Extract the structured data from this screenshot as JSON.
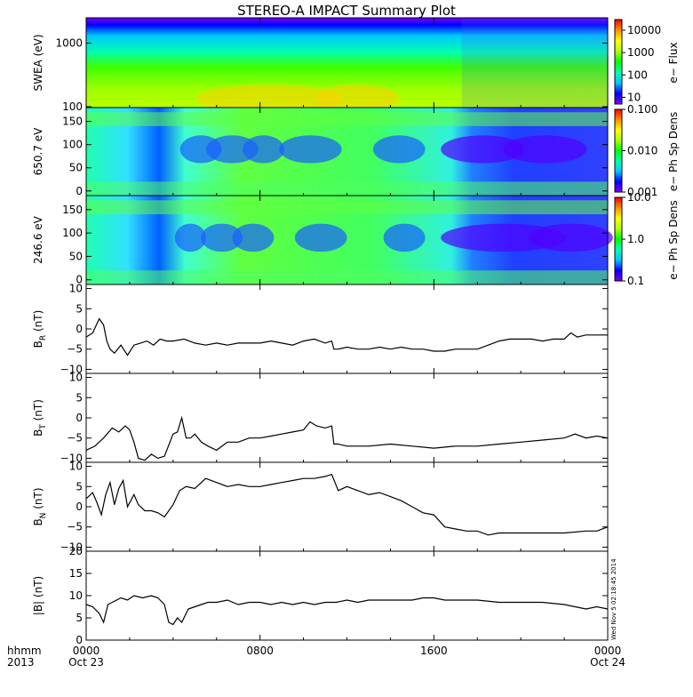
{
  "title": "STEREO-A IMPACT Summary Plot",
  "stamp": "Wed Nov  5 02:18:45 2014",
  "time_axis": {
    "corner_top": "hhmm",
    "corner_bottom": "2013",
    "range": [
      0,
      24
    ],
    "ticks": [
      {
        "t": 0,
        "top": "0000",
        "bottom": "Oct 23"
      },
      {
        "t": 8,
        "top": "0800",
        "bottom": ""
      },
      {
        "t": 16,
        "top": "1600",
        "bottom": ""
      },
      {
        "t": 24,
        "top": "0000",
        "bottom": "Oct 24"
      }
    ]
  },
  "colors": {
    "colorbar_stops": [
      "#7a00ff",
      "#0000ff",
      "#00c8ff",
      "#00ffb0",
      "#00ff00",
      "#b0ff00",
      "#ffff00",
      "#ff9000",
      "#ff0000"
    ],
    "line": "#000000"
  },
  "chart_data": [
    {
      "type": "heatmap",
      "ylabel": "SWEA (eV)",
      "scale": "log",
      "ylim": [
        100,
        2000
      ],
      "yticks": [
        {
          "v": 100,
          "label": "100"
        },
        {
          "v": 1000,
          "label": "1000"
        }
      ],
      "colorbar": {
        "title": "e− Flux",
        "scale": "log",
        "range": [
          5,
          30000
        ],
        "ticks": [
          {
            "v": 10,
            "label": "10"
          },
          {
            "v": 100,
            "label": "100"
          },
          {
            "v": 1000,
            "label": "1000"
          },
          {
            "v": 10000,
            "label": "10000"
          }
        ]
      }
    },
    {
      "type": "heatmap",
      "ylabel": "650.7 eV",
      "scale": "linear",
      "ylim": [
        -10,
        180
      ],
      "yticks": [
        {
          "v": 0,
          "label": "0"
        },
        {
          "v": 50,
          "label": "50"
        },
        {
          "v": 100,
          "label": "100"
        },
        {
          "v": 150,
          "label": "150"
        }
      ],
      "colorbar": {
        "title": "e− Ph Sp Dens",
        "scale": "log",
        "range": [
          0.001,
          0.1
        ],
        "ticks": [
          {
            "v": 0.001,
            "label": "0.001"
          },
          {
            "v": 0.01,
            "label": "0.010"
          },
          {
            "v": 0.1,
            "label": "0.100"
          }
        ]
      }
    },
    {
      "type": "heatmap",
      "ylabel": "246.6 eV",
      "scale": "linear",
      "ylim": [
        -10,
        180
      ],
      "yticks": [
        {
          "v": 0,
          "label": "0"
        },
        {
          "v": 50,
          "label": "50"
        },
        {
          "v": 100,
          "label": "100"
        },
        {
          "v": 150,
          "label": "150"
        }
      ],
      "colorbar": {
        "title": "e− Ph Sp Dens",
        "scale": "log",
        "range": [
          0.1,
          10
        ],
        "ticks": [
          {
            "v": 0.1,
            "label": "0.1"
          },
          {
            "v": 1,
            "label": "1.0"
          },
          {
            "v": 10,
            "label": "10.0"
          }
        ]
      }
    },
    {
      "type": "line",
      "ylabel": "B",
      "ylabel_sub": "R",
      "ylabel_unit": " (nT)",
      "ylim": [
        -11,
        11
      ],
      "yticks": [
        {
          "v": -10,
          "label": "−10"
        },
        {
          "v": -5,
          "label": "−5"
        },
        {
          "v": 0,
          "label": "0"
        },
        {
          "v": 5,
          "label": "5"
        },
        {
          "v": 10,
          "label": "10"
        }
      ],
      "x": [
        0,
        0.3,
        0.6,
        0.8,
        0.95,
        1.1,
        1.3,
        1.6,
        1.9,
        2.2,
        2.5,
        2.8,
        3.1,
        3.4,
        3.7,
        4,
        4.5,
        5,
        5.5,
        6,
        6.5,
        7,
        7.5,
        8,
        8.5,
        9,
        9.5,
        10,
        10.5,
        11,
        11.3,
        11.4,
        11.6,
        12,
        12.5,
        13,
        13.5,
        14,
        14.5,
        15,
        15.5,
        16,
        16.5,
        17,
        17.5,
        18,
        18.5,
        19,
        19.5,
        20,
        20.5,
        21,
        21.5,
        22,
        22.3,
        22.6,
        23,
        23.5,
        24
      ],
      "y": [
        -2,
        -1,
        2.5,
        1,
        -3,
        -5,
        -6,
        -4,
        -6.5,
        -4,
        -3.5,
        -3,
        -4,
        -2.5,
        -3,
        -3,
        -2.5,
        -3.5,
        -4,
        -3.5,
        -4,
        -3.5,
        -3.5,
        -3.5,
        -3,
        -3.5,
        -4,
        -3,
        -2.5,
        -3.5,
        -3,
        -5,
        -5,
        -4.5,
        -5,
        -5,
        -4.5,
        -5,
        -4.5,
        -5,
        -5,
        -5.5,
        -5.5,
        -5,
        -5,
        -5,
        -4,
        -3,
        -2.5,
        -2.5,
        -2.5,
        -3,
        -2.5,
        -2.5,
        -1,
        -2,
        -1.5,
        -1.5,
        -1.5
      ]
    },
    {
      "type": "line",
      "ylabel": "B",
      "ylabel_sub": "T",
      "ylabel_unit": " (nT)",
      "ylim": [
        -11,
        11
      ],
      "yticks": [
        {
          "v": -10,
          "label": "−10"
        },
        {
          "v": -5,
          "label": "−5"
        },
        {
          "v": 0,
          "label": "0"
        },
        {
          "v": 5,
          "label": "5"
        },
        {
          "v": 10,
          "label": "10"
        }
      ],
      "x": [
        0,
        0.4,
        0.8,
        1.2,
        1.5,
        1.8,
        2.0,
        2.2,
        2.4,
        2.7,
        3.0,
        3.3,
        3.6,
        4.0,
        4.2,
        4.4,
        4.6,
        4.8,
        5.0,
        5.3,
        5.6,
        6.0,
        6.5,
        7,
        7.5,
        8,
        8.5,
        9,
        9.5,
        10,
        10.3,
        10.6,
        11,
        11.3,
        11.4,
        11.6,
        12,
        13,
        14,
        15,
        16,
        17,
        18,
        19,
        20,
        21,
        22,
        22.5,
        23,
        23.5,
        24
      ],
      "y": [
        -8,
        -7,
        -5,
        -2.5,
        -3.5,
        -2,
        -3,
        -6,
        -10,
        -10.5,
        -9,
        -10,
        -9.5,
        -4,
        -3.5,
        0,
        -5,
        -5,
        -4,
        -6,
        -7,
        -8,
        -6,
        -6,
        -5,
        -5,
        -4.5,
        -4,
        -3.5,
        -3,
        -1,
        -2,
        -2.5,
        -2,
        -6.5,
        -6.5,
        -7,
        -7,
        -6.5,
        -7,
        -7.5,
        -7,
        -7,
        -6.5,
        -6,
        -5.5,
        -5,
        -4,
        -5,
        -4.5,
        -5
      ]
    },
    {
      "type": "line",
      "ylabel": "B",
      "ylabel_sub": "N",
      "ylabel_unit": " (nT)",
      "ylim": [
        -11,
        11
      ],
      "yticks": [
        {
          "v": -10,
          "label": "−10"
        },
        {
          "v": -5,
          "label": "−5"
        },
        {
          "v": 0,
          "label": "0"
        },
        {
          "v": 5,
          "label": "5"
        },
        {
          "v": 10,
          "label": "10"
        }
      ],
      "x": [
        0,
        0.3,
        0.5,
        0.7,
        0.9,
        1.1,
        1.3,
        1.5,
        1.7,
        1.9,
        2.2,
        2.4,
        2.7,
        3.0,
        3.3,
        3.6,
        4.0,
        4.3,
        4.6,
        5.0,
        5.5,
        6,
        6.5,
        7,
        7.5,
        8,
        8.5,
        9,
        9.5,
        10,
        10.5,
        11,
        11.3,
        11.6,
        12,
        12.5,
        13,
        13.5,
        14,
        14.5,
        15,
        15.5,
        16,
        16.5,
        17,
        17.5,
        18,
        18.5,
        19,
        19.5,
        20,
        21,
        22,
        23,
        23.5,
        24
      ],
      "y": [
        2,
        3.5,
        1,
        -2,
        3,
        6,
        0.5,
        4.5,
        6.5,
        0,
        3,
        0.5,
        -1,
        -1,
        -1.5,
        -2.5,
        0.5,
        4,
        5,
        4.5,
        7,
        6,
        5,
        5.5,
        5,
        5,
        5.5,
        6,
        6.5,
        7,
        7,
        7.5,
        8,
        4,
        5,
        4,
        3,
        3.5,
        2.5,
        1.5,
        0,
        -1.5,
        -2,
        -5,
        -5.5,
        -6,
        -6,
        -7,
        -6.5,
        -6.5,
        -6.5,
        -6.5,
        -6.5,
        -6,
        -6,
        -5
      ]
    },
    {
      "type": "line",
      "ylabel": "|B|",
      "ylabel_sub": "",
      "ylabel_unit": " (nT)",
      "ylim": [
        0,
        20
      ],
      "yticks": [
        {
          "v": 0,
          "label": "0"
        },
        {
          "v": 5,
          "label": "5"
        },
        {
          "v": 10,
          "label": "10"
        },
        {
          "v": 15,
          "label": "15"
        },
        {
          "v": 20,
          "label": "20"
        }
      ],
      "x": [
        0,
        0.3,
        0.6,
        0.8,
        1.0,
        1.2,
        1.4,
        1.6,
        1.9,
        2.2,
        2.6,
        3.0,
        3.3,
        3.6,
        3.8,
        4.0,
        4.2,
        4.4,
        4.7,
        5.0,
        5.3,
        5.6,
        6,
        6.5,
        7,
        7.5,
        8,
        8.5,
        9,
        9.5,
        10,
        10.5,
        11,
        11.5,
        12,
        12.5,
        13,
        13.5,
        14,
        14.5,
        15,
        15.5,
        16,
        16.5,
        17,
        18,
        19,
        20,
        21,
        22,
        23,
        23.5,
        24
      ],
      "y": [
        8,
        7.5,
        6,
        4,
        8,
        8.5,
        9,
        9.5,
        9,
        10,
        9.5,
        10,
        9.5,
        8,
        4,
        3.5,
        5,
        4,
        7,
        7.5,
        8,
        8.5,
        8.5,
        9,
        8,
        8.5,
        8.5,
        8,
        8.5,
        8,
        8.5,
        8,
        8.5,
        8.5,
        9,
        8.5,
        9,
        9,
        9,
        9,
        9,
        9.5,
        9.5,
        9,
        9,
        9,
        8.5,
        8.5,
        8.5,
        8,
        7,
        7.5,
        7
      ]
    }
  ]
}
